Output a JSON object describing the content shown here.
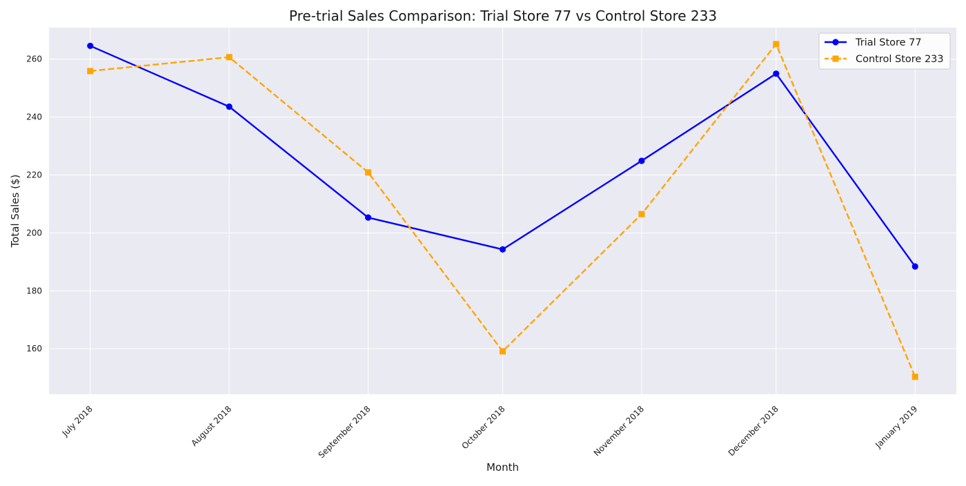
{
  "chart_data": {
    "type": "line",
    "title": "Pre-trial Sales Comparison: Trial Store 77 vs Control Store 233",
    "xlabel": "Month",
    "ylabel": "Total Sales ($)",
    "categories": [
      "July 2018",
      "August 2018",
      "September 2018",
      "October 2018",
      "November 2018",
      "December 2018",
      "January 2019"
    ],
    "x_dates": [
      "2018-07-01",
      "2018-08-01",
      "2018-09-01",
      "2018-10-01",
      "2018-11-01",
      "2018-12-01",
      "2019-01-01"
    ],
    "ylim": [
      144.3,
      270.9
    ],
    "yticks": [
      160,
      180,
      200,
      220,
      240,
      260
    ],
    "grid": true,
    "legend_position": "top-right",
    "background_color": "#eaeaf2",
    "grid_color": "#ffffff",
    "series": [
      {
        "name": "Trial Store 77",
        "values": [
          264.6,
          243.6,
          205.3,
          194.3,
          224.9,
          255.0,
          188.4
        ],
        "color": "#0000ff",
        "line_style": "solid",
        "marker": "circle"
      },
      {
        "name": "Control Store 233",
        "values": [
          255.9,
          260.7,
          220.9,
          159.1,
          206.5,
          265.2,
          150.3
        ],
        "color": "#ffa500",
        "line_style": "dashed",
        "marker": "square"
      }
    ]
  }
}
